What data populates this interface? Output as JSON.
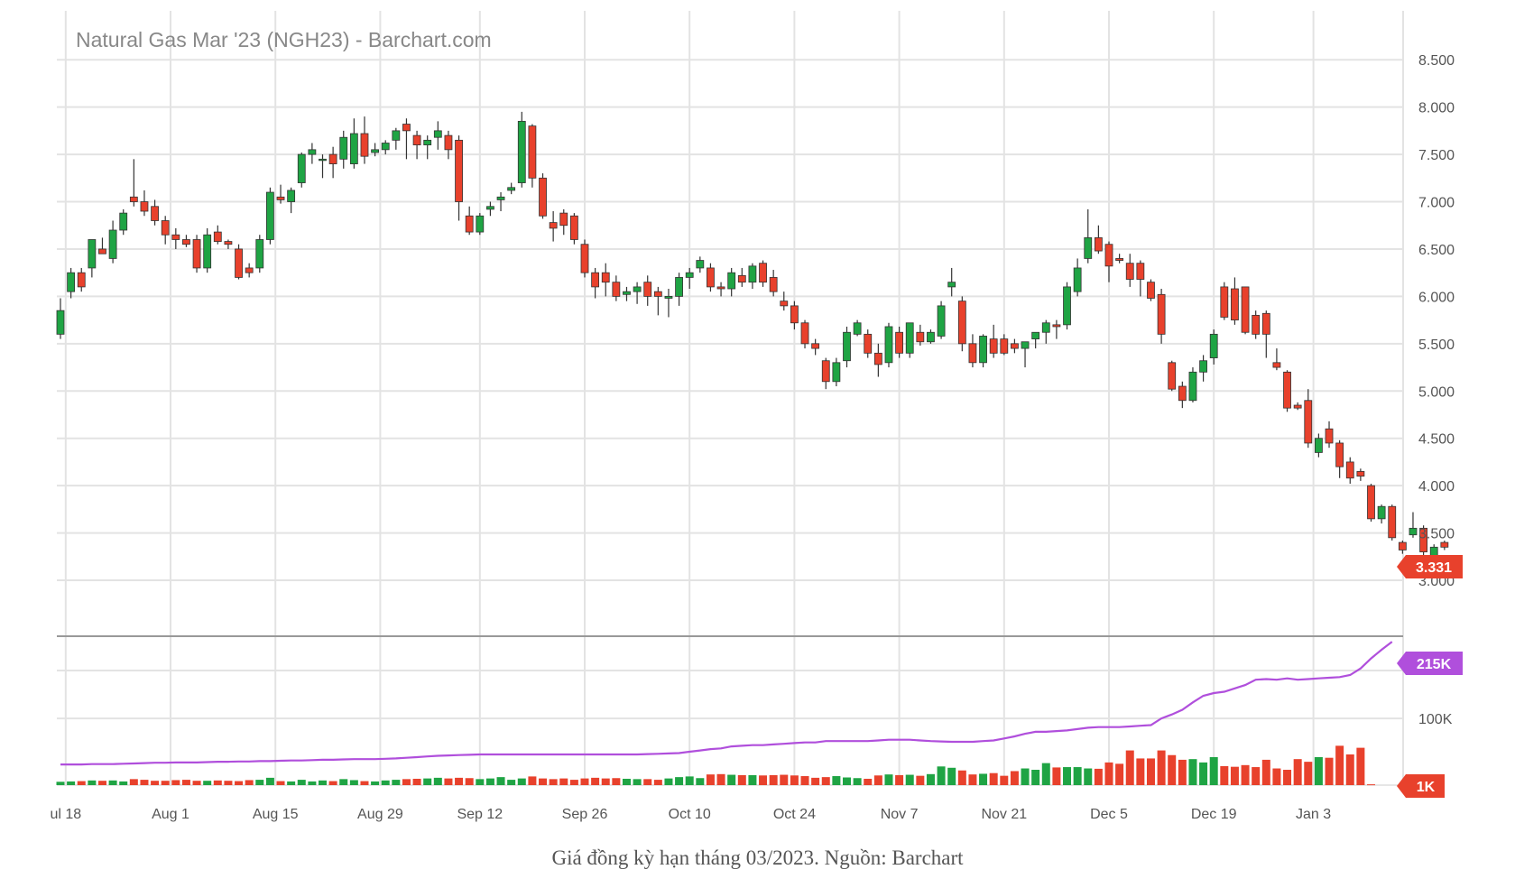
{
  "caption": "Giá đồng kỳ hạn tháng 03/2023. Nguồn: Barchart",
  "chart_data": {
    "type": "candlestick",
    "title": "Natural Gas Mar '23 (NGH23) - Barchart.com",
    "price_axis": {
      "ylim": [
        2.8,
        8.75
      ],
      "ticks": [
        "3.000",
        "3.500",
        "4.000",
        "4.500",
        "5.000",
        "5.500",
        "6.000",
        "6.500",
        "7.000",
        "7.500",
        "8.000",
        "8.500"
      ],
      "tick_values": [
        3.0,
        3.5,
        4.0,
        4.5,
        5.0,
        5.5,
        6.0,
        6.5,
        7.0,
        7.5,
        8.0,
        8.5
      ]
    },
    "volume_axis": {
      "ylim": [
        0,
        230000
      ],
      "ticks": [
        "100K"
      ],
      "tick_values": [
        100000
      ]
    },
    "x_ticks": [
      "ul 18",
      "Aug 1",
      "Aug 15",
      "Aug 29",
      "Sep 12",
      "Sep 26",
      "Oct 10",
      "Oct 24",
      "Nov 7",
      "Nov 21",
      "Dec 5",
      "Dec 19",
      "Jan 3"
    ],
    "x_tick_index": [
      0.5,
      10.5,
      20.5,
      30.5,
      40,
      50,
      60,
      70,
      80,
      90,
      100,
      110,
      119.5
    ],
    "last_price": "3.331",
    "last_oi": "215K",
    "last_volume": "1K",
    "colors": {
      "up": "#1fa444",
      "down": "#e8412c",
      "oi_line": "#b04fdc",
      "grid": "#e3e3e3",
      "axis_text": "#555555",
      "title": "#888888"
    },
    "ohlc": [
      [
        5.6,
        5.98,
        5.55,
        5.85
      ],
      [
        6.05,
        6.3,
        5.98,
        6.25
      ],
      [
        6.25,
        6.3,
        6.05,
        6.1
      ],
      [
        6.3,
        6.6,
        6.2,
        6.6
      ],
      [
        6.5,
        6.62,
        6.45,
        6.45
      ],
      [
        6.4,
        6.8,
        6.35,
        6.7
      ],
      [
        6.7,
        6.92,
        6.65,
        6.88
      ],
      [
        7.05,
        7.45,
        6.95,
        7.0
      ],
      [
        7.0,
        7.12,
        6.85,
        6.9
      ],
      [
        6.95,
        7.02,
        6.75,
        6.8
      ],
      [
        6.8,
        6.85,
        6.55,
        6.65
      ],
      [
        6.65,
        6.72,
        6.5,
        6.6
      ],
      [
        6.6,
        6.65,
        6.52,
        6.55
      ],
      [
        6.6,
        6.65,
        6.25,
        6.3
      ],
      [
        6.3,
        6.72,
        6.25,
        6.65
      ],
      [
        6.68,
        6.75,
        6.55,
        6.58
      ],
      [
        6.58,
        6.6,
        6.5,
        6.55
      ],
      [
        6.5,
        6.55,
        6.18,
        6.2
      ],
      [
        6.3,
        6.35,
        6.2,
        6.25
      ],
      [
        6.3,
        6.65,
        6.25,
        6.6
      ],
      [
        6.6,
        7.15,
        6.55,
        7.1
      ],
      [
        7.05,
        7.18,
        6.98,
        7.02
      ],
      [
        7.0,
        7.15,
        6.88,
        7.12
      ],
      [
        7.2,
        7.52,
        7.15,
        7.5
      ],
      [
        7.5,
        7.62,
        7.4,
        7.55
      ],
      [
        7.45,
        7.5,
        7.25,
        7.45
      ],
      [
        7.5,
        7.58,
        7.25,
        7.4
      ],
      [
        7.45,
        7.75,
        7.35,
        7.68
      ],
      [
        7.4,
        7.88,
        7.35,
        7.72
      ],
      [
        7.72,
        7.9,
        7.4,
        7.48
      ],
      [
        7.52,
        7.62,
        7.48,
        7.55
      ],
      [
        7.55,
        7.65,
        7.5,
        7.62
      ],
      [
        7.65,
        7.78,
        7.55,
        7.75
      ],
      [
        7.82,
        7.88,
        7.45,
        7.75
      ],
      [
        7.7,
        7.75,
        7.45,
        7.6
      ],
      [
        7.6,
        7.7,
        7.45,
        7.65
      ],
      [
        7.68,
        7.85,
        7.55,
        7.75
      ],
      [
        7.7,
        7.75,
        7.45,
        7.55
      ],
      [
        7.65,
        7.7,
        6.8,
        7.0
      ],
      [
        6.85,
        6.95,
        6.65,
        6.68
      ],
      [
        6.68,
        6.88,
        6.65,
        6.85
      ],
      [
        6.92,
        7.0,
        6.85,
        6.95
      ],
      [
        7.02,
        7.1,
        6.9,
        7.05
      ],
      [
        7.12,
        7.2,
        7.08,
        7.15
      ],
      [
        7.2,
        7.95,
        7.15,
        7.85
      ],
      [
        7.8,
        7.82,
        7.15,
        7.25
      ],
      [
        7.25,
        7.3,
        6.82,
        6.85
      ],
      [
        6.78,
        6.9,
        6.58,
        6.72
      ],
      [
        6.88,
        6.92,
        6.65,
        6.75
      ],
      [
        6.85,
        6.88,
        6.55,
        6.6
      ],
      [
        6.55,
        6.6,
        6.2,
        6.25
      ],
      [
        6.25,
        6.3,
        5.98,
        6.1
      ],
      [
        6.25,
        6.35,
        6.0,
        6.15
      ],
      [
        6.15,
        6.22,
        5.95,
        6.0
      ],
      [
        6.02,
        6.1,
        5.95,
        6.05
      ],
      [
        6.05,
        6.15,
        5.92,
        6.1
      ],
      [
        6.15,
        6.22,
        5.9,
        6.0
      ],
      [
        6.05,
        6.1,
        5.8,
        6.0
      ],
      [
        5.98,
        6.08,
        5.78,
        6.0
      ],
      [
        6.0,
        6.25,
        5.9,
        6.2
      ],
      [
        6.2,
        6.3,
        6.08,
        6.25
      ],
      [
        6.3,
        6.42,
        6.25,
        6.38
      ],
      [
        6.3,
        6.35,
        6.05,
        6.1
      ],
      [
        6.1,
        6.15,
        6.0,
        6.08
      ],
      [
        6.08,
        6.3,
        6.0,
        6.25
      ],
      [
        6.22,
        6.3,
        6.1,
        6.15
      ],
      [
        6.15,
        6.35,
        6.08,
        6.32
      ],
      [
        6.35,
        6.38,
        6.1,
        6.15
      ],
      [
        6.2,
        6.28,
        6.0,
        6.05
      ],
      [
        5.95,
        6.05,
        5.85,
        5.9
      ],
      [
        5.9,
        5.95,
        5.65,
        5.72
      ],
      [
        5.72,
        5.75,
        5.45,
        5.5
      ],
      [
        5.5,
        5.55,
        5.38,
        5.45
      ],
      [
        5.32,
        5.35,
        5.02,
        5.1
      ],
      [
        5.1,
        5.35,
        5.05,
        5.3
      ],
      [
        5.32,
        5.68,
        5.25,
        5.62
      ],
      [
        5.6,
        5.75,
        5.58,
        5.72
      ],
      [
        5.6,
        5.65,
        5.35,
        5.4
      ],
      [
        5.4,
        5.5,
        5.15,
        5.28
      ],
      [
        5.3,
        5.72,
        5.25,
        5.68
      ],
      [
        5.62,
        5.68,
        5.35,
        5.4
      ],
      [
        5.4,
        5.72,
        5.35,
        5.72
      ],
      [
        5.62,
        5.7,
        5.48,
        5.52
      ],
      [
        5.52,
        5.65,
        5.5,
        5.62
      ],
      [
        5.58,
        5.95,
        5.55,
        5.9
      ],
      [
        6.1,
        6.3,
        6.0,
        6.15
      ],
      [
        5.95,
        6.0,
        5.42,
        5.5
      ],
      [
        5.5,
        5.6,
        5.25,
        5.3
      ],
      [
        5.3,
        5.6,
        5.25,
        5.58
      ],
      [
        5.55,
        5.7,
        5.35,
        5.4
      ],
      [
        5.55,
        5.6,
        5.38,
        5.4
      ],
      [
        5.5,
        5.55,
        5.4,
        5.45
      ],
      [
        5.45,
        5.5,
        5.25,
        5.52
      ],
      [
        5.55,
        5.62,
        5.45,
        5.62
      ],
      [
        5.62,
        5.75,
        5.5,
        5.72
      ],
      [
        5.7,
        5.75,
        5.55,
        5.68
      ],
      [
        5.7,
        6.15,
        5.65,
        6.1
      ],
      [
        6.05,
        6.4,
        6.0,
        6.3
      ],
      [
        6.4,
        6.92,
        6.35,
        6.62
      ],
      [
        6.62,
        6.75,
        6.45,
        6.48
      ],
      [
        6.55,
        6.58,
        6.15,
        6.32
      ],
      [
        6.4,
        6.45,
        6.35,
        6.38
      ],
      [
        6.35,
        6.45,
        6.1,
        6.18
      ],
      [
        6.35,
        6.38,
        6.0,
        6.18
      ],
      [
        6.15,
        6.18,
        5.95,
        5.98
      ],
      [
        6.02,
        6.08,
        5.5,
        5.6
      ],
      [
        5.3,
        5.32,
        5.0,
        5.02
      ],
      [
        5.05,
        5.1,
        4.82,
        4.9
      ],
      [
        4.9,
        5.25,
        4.88,
        5.2
      ],
      [
        5.2,
        5.38,
        5.1,
        5.32
      ],
      [
        5.35,
        5.65,
        5.28,
        5.6
      ],
      [
        6.1,
        6.15,
        5.75,
        5.78
      ],
      [
        6.08,
        6.2,
        5.7,
        5.75
      ],
      [
        6.1,
        6.1,
        5.6,
        5.62
      ],
      [
        5.8,
        5.85,
        5.55,
        5.6
      ],
      [
        5.82,
        5.85,
        5.35,
        5.6
      ],
      [
        5.3,
        5.45,
        5.22,
        5.25
      ],
      [
        5.2,
        5.22,
        4.78,
        4.82
      ],
      [
        4.85,
        4.88,
        4.8,
        4.82
      ],
      [
        4.9,
        5.02,
        4.4,
        4.45
      ],
      [
        4.35,
        4.55,
        4.3,
        4.5
      ],
      [
        4.6,
        4.68,
        4.4,
        4.45
      ],
      [
        4.45,
        4.48,
        4.08,
        4.2
      ],
      [
        4.25,
        4.3,
        4.02,
        4.08
      ],
      [
        4.15,
        4.18,
        4.05,
        4.1
      ],
      [
        4.0,
        4.02,
        3.62,
        3.65
      ],
      [
        3.65,
        3.8,
        3.6,
        3.78
      ],
      [
        3.78,
        3.8,
        3.42,
        3.45
      ],
      [
        3.4,
        3.42,
        3.28,
        3.32
      ],
      [
        3.48,
        3.72,
        3.45,
        3.55
      ],
      [
        3.55,
        3.58,
        3.25,
        3.3
      ],
      [
        3.25,
        3.38,
        3.12,
        3.35
      ],
      [
        3.4,
        3.42,
        3.32,
        3.35
      ]
    ],
    "volume": [
      5000,
      5500,
      6000,
      7000,
      6500,
      7000,
      5500,
      9000,
      8000,
      6500,
      6500,
      7500,
      8000,
      6500,
      6500,
      7000,
      6500,
      6000,
      7500,
      8000,
      11000,
      6000,
      5500,
      8000,
      5500,
      7000,
      6000,
      9000,
      7500,
      6000,
      5500,
      7000,
      8000,
      9000,
      9500,
      10000,
      11000,
      10000,
      11000,
      10500,
      9000,
      10000,
      12000,
      8000,
      10000,
      13000,
      10000,
      9000,
      10000,
      8000,
      10000,
      11000,
      10000,
      10500,
      9500,
      9000,
      9000,
      8000,
      10000,
      12000,
      13000,
      10500,
      16000,
      16500,
      15500,
      15000,
      15000,
      14500,
      15000,
      15500,
      14500,
      13500,
      11000,
      12000,
      13500,
      11500,
      10500,
      9500,
      14500,
      16000,
      15000,
      15500,
      14000,
      16500,
      28000,
      26000,
      22000,
      16000,
      17000,
      18000,
      14000,
      21000,
      25000,
      23000,
      33000,
      26500,
      27000,
      27000,
      25000,
      24500,
      34000,
      32000,
      52000,
      40000,
      40000,
      52000,
      45000,
      38000,
      39000,
      34000,
      42000,
      28500,
      27500,
      30000,
      27000,
      38000,
      25000,
      23000,
      39000,
      35000,
      42000,
      41000,
      59000,
      46000,
      56000,
      1200
    ],
    "oi": [
      31000,
      31000,
      31000,
      31500,
      31500,
      31500,
      32000,
      32500,
      33000,
      33500,
      33500,
      34000,
      34000,
      34000,
      34500,
      35000,
      35000,
      35500,
      35500,
      36000,
      36000,
      36500,
      37000,
      37000,
      37500,
      38000,
      38000,
      38500,
      39000,
      39000,
      39000,
      39500,
      40000,
      41000,
      42000,
      43000,
      44000,
      44500,
      45000,
      45500,
      46000,
      46000,
      46000,
      46000,
      46000,
      46000,
      46000,
      46000,
      46000,
      46000,
      46000,
      46000,
      46000,
      46000,
      46000,
      46000,
      46500,
      47000,
      47500,
      48000,
      50000,
      52000,
      54000,
      55000,
      58000,
      59000,
      60000,
      60000,
      61000,
      62000,
      63000,
      64000,
      64000,
      66000,
      66000,
      66000,
      66000,
      66000,
      67000,
      68000,
      68000,
      68000,
      67000,
      66000,
      65500,
      65000,
      65000,
      65000,
      66000,
      67000,
      70000,
      73000,
      77000,
      80000,
      80000,
      81000,
      82000,
      84000,
      86000,
      87000,
      87000,
      87000,
      88000,
      89000,
      90000,
      100000,
      106000,
      113000,
      124000,
      134000,
      138000,
      140000,
      145000,
      150000,
      158000,
      159000,
      158000,
      160000,
      158000,
      159000,
      160000,
      161000,
      162000,
      165000,
      175000,
      190000,
      203000,
      215000
    ]
  }
}
